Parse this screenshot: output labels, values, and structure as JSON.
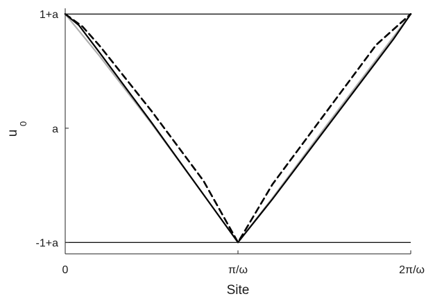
{
  "chart_data": {
    "type": "line",
    "xlabel": "Site",
    "ylabel": {
      "base": "u",
      "subscript": "0"
    },
    "xticks": [
      {
        "value": 0,
        "label": "0"
      },
      {
        "value": 1,
        "label": "π/ω"
      },
      {
        "value": 2,
        "label": "2π/ω"
      }
    ],
    "yticks": [
      {
        "value": 1,
        "label": "1+a"
      },
      {
        "value": 0,
        "label": "a"
      },
      {
        "value": -1,
        "label": "-1+a"
      }
    ],
    "xlim": [
      0,
      2
    ],
    "ylim": [
      -1.1,
      1.05
    ],
    "reference_lines": [
      {
        "y": 1,
        "color": "#000000"
      },
      {
        "y": -1,
        "color": "#000000"
      }
    ],
    "series": [
      {
        "color": "#b0b0b0",
        "style": "solid",
        "x": [
          0,
          0.2,
          0.5,
          0.8,
          1.0,
          1.2,
          1.5,
          1.8,
          2.0
        ],
        "y": [
          1,
          0.63,
          0.04,
          -0.58,
          -1,
          -0.61,
          0.0,
          0.6,
          1
        ]
      },
      {
        "color": "#000000",
        "style": "solid",
        "x": [
          0,
          0.08,
          0.2,
          0.5,
          0.8,
          1.0,
          1.2,
          1.5,
          1.8,
          1.9,
          2.0
        ],
        "y": [
          1,
          0.9,
          0.66,
          0.05,
          -0.58,
          -1,
          -0.62,
          -0.02,
          0.58,
          0.78,
          1
        ]
      },
      {
        "color": "#000000",
        "style": "dashed",
        "x": [
          0,
          0.1,
          0.2,
          0.5,
          0.8,
          1.0,
          1.2,
          1.5,
          1.8,
          2.0
        ],
        "y": [
          1,
          0.89,
          0.72,
          0.15,
          -0.46,
          -1,
          -0.49,
          0.12,
          0.73,
          1
        ]
      }
    ]
  }
}
